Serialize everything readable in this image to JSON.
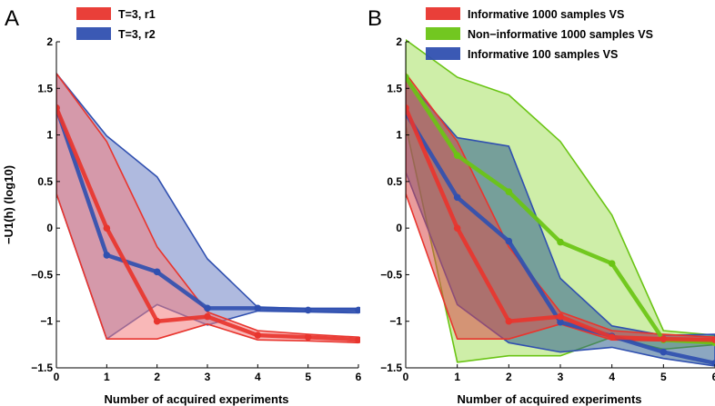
{
  "chart_data": [
    {
      "type": "line",
      "panel_label": "A",
      "xlabel": "Number of acquired experiments",
      "ylabel": "−U1(h) (log10)",
      "xlim": [
        0,
        6
      ],
      "ylim": [
        -1.5,
        2
      ],
      "x_ticks": [
        "0",
        "1",
        "2",
        "3",
        "4",
        "5",
        "6"
      ],
      "y_ticks": [
        "−1.5",
        "−1",
        "−0.5",
        "0",
        "0.5",
        "1",
        "1.5",
        "2"
      ],
      "legend_position": "top",
      "series": [
        {
          "name": "T=3, r2",
          "color": "#3050b0",
          "fill": "#6e82c4",
          "x": [
            0,
            1,
            2,
            3,
            4,
            5,
            6
          ],
          "y": [
            1.29,
            -0.29,
            -0.47,
            -0.86,
            -0.86,
            -0.88,
            -0.88
          ],
          "upper": [
            1.66,
            0.99,
            0.55,
            -0.33,
            -0.85,
            -0.86,
            -0.86
          ],
          "lower": [
            0.37,
            -1.19,
            -0.82,
            -1.04,
            -0.89,
            -0.9,
            -0.91
          ]
        },
        {
          "name": "T=3, r1",
          "color": "#e8352e",
          "fill": "#f47e7e",
          "x": [
            0,
            1,
            2,
            3,
            4,
            5,
            6
          ],
          "y": [
            1.29,
            0.0,
            -1.0,
            -0.95,
            -1.15,
            -1.17,
            -1.2
          ],
          "upper": [
            1.66,
            0.93,
            -0.2,
            -0.9,
            -1.1,
            -1.14,
            -1.17
          ],
          "lower": [
            0.37,
            -1.19,
            -1.19,
            -1.03,
            -1.2,
            -1.21,
            -1.23
          ]
        }
      ]
    },
    {
      "type": "line",
      "panel_label": "B",
      "xlabel": "Number of acquired experiments",
      "ylabel": "",
      "xlim": [
        0,
        6
      ],
      "ylim": [
        -1.5,
        2
      ],
      "x_ticks": [
        "0",
        "1",
        "2",
        "3",
        "4",
        "5",
        "6"
      ],
      "y_ticks": [
        "−1.5",
        "−1",
        "−0.5",
        "0",
        "0.5",
        "1",
        "1.5",
        "2"
      ],
      "legend_position": "top",
      "series": [
        {
          "name": "Non−informative 1000 samples VS",
          "color": "#6ac414",
          "fill": "#a6e060",
          "x": [
            0,
            1,
            2,
            3,
            4,
            5,
            6
          ],
          "y": [
            1.62,
            0.78,
            0.39,
            -0.15,
            -0.38,
            -1.2,
            -1.23
          ],
          "upper": [
            2.02,
            1.62,
            1.43,
            0.93,
            0.14,
            -1.1,
            -1.15
          ],
          "lower": [
            1.1,
            -1.44,
            -1.37,
            -1.37,
            -1.17,
            -1.3,
            -1.25
          ]
        },
        {
          "name": "Informative 100 samples VS",
          "color": "#3050b0",
          "fill": "#2e5f8e",
          "x": [
            0,
            1,
            2,
            3,
            4,
            5,
            6
          ],
          "y": [
            1.24,
            0.33,
            -0.14,
            -1.01,
            -1.16,
            -1.33,
            -1.45
          ],
          "upper": [
            1.6,
            0.97,
            0.88,
            -0.54,
            -1.05,
            -1.15,
            -1.14
          ],
          "lower": [
            0.6,
            -0.82,
            -1.23,
            -1.33,
            -1.28,
            -1.4,
            -1.48
          ]
        },
        {
          "name": "Informative 1000 samples VS",
          "color": "#e8352e",
          "fill": "#d84a4a",
          "x": [
            0,
            1,
            2,
            3,
            4,
            5,
            6
          ],
          "y": [
            1.29,
            0.0,
            -1.0,
            -0.95,
            -1.17,
            -1.19,
            -1.2
          ],
          "upper": [
            1.66,
            0.93,
            -0.2,
            -0.9,
            -1.1,
            -1.14,
            -1.17
          ],
          "lower": [
            0.37,
            -1.19,
            -1.19,
            -1.03,
            -1.2,
            -1.21,
            -1.23
          ]
        }
      ]
    }
  ]
}
